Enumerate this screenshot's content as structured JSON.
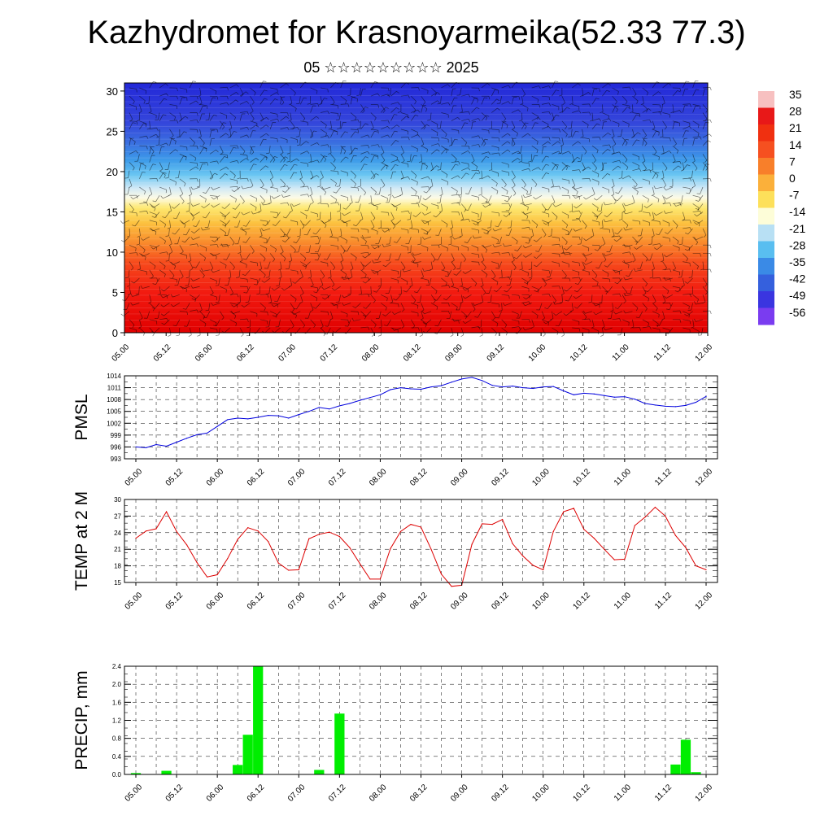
{
  "title": "Kazhydromet for Krasnoyarmeika(52.33 77.3)",
  "subtitle": "05 ☆☆☆☆☆☆☆☆☆ 2025",
  "time_labels": [
    "05.00",
    "05.12",
    "06.00",
    "06.12",
    "07.00",
    "07.12",
    "08.00",
    "08.12",
    "09.00",
    "09.12",
    "10.00",
    "10.12",
    "11.00",
    "11.12",
    "12.00"
  ],
  "chart_data": [
    {
      "type": "heatmap",
      "xlabels": [
        "05.00",
        "05.12",
        "06.00",
        "06.12",
        "07.00",
        "07.12",
        "08.00",
        "08.12",
        "09.00",
        "09.12",
        "10.00",
        "10.12",
        "11.00",
        "11.12",
        "12.00"
      ],
      "yticks": [
        0,
        5,
        10,
        15,
        20,
        25,
        30
      ],
      "ylim": [
        0,
        31
      ],
      "colorbar_labels": [
        "35",
        "28",
        "21",
        "14",
        "7",
        "0",
        "-7",
        "-14",
        "-21",
        "-28",
        "-35",
        "-42",
        "-49",
        "-56"
      ],
      "colorbar_colors": [
        "#f7c0c0",
        "#e81818",
        "#f03010",
        "#f65020",
        "#f87f2a",
        "#fbb03a",
        "#fde05a",
        "#fdfdd8",
        "#b8e0f4",
        "#59bef0",
        "#3a8ae6",
        "#3560dd",
        "#3a35e0",
        "#7a3cf0"
      ],
      "note_layers": "temperature shading with wind barbs, values by height and time"
    },
    {
      "type": "line",
      "ylabel": "PMSL",
      "ylim": [
        993,
        1014
      ],
      "yticks": [
        993,
        996,
        999,
        1002,
        1005,
        1008,
        1011,
        1014
      ],
      "color": "#0000dd",
      "x": [
        0,
        1,
        2,
        3,
        4,
        5,
        6,
        7,
        8,
        9,
        10,
        11,
        12,
        13,
        14,
        15,
        16,
        17,
        18,
        19,
        20,
        21,
        22,
        23,
        24,
        25,
        26,
        27,
        28,
        29,
        30,
        31,
        32,
        33,
        34,
        35,
        36,
        37,
        38,
        39,
        40,
        41,
        42,
        43,
        44,
        45,
        46,
        47,
        48,
        49,
        50,
        51,
        52,
        53,
        54,
        55,
        56
      ],
      "values": [
        996.0,
        995.8,
        996.6,
        996.2,
        997.2,
        998.2,
        999.1,
        999.5,
        1001.2,
        1002.9,
        1003.3,
        1003.1,
        1003.5,
        1004.0,
        1003.9,
        1003.3,
        1004.2,
        1005.0,
        1006.0,
        1005.6,
        1006.4,
        1007.0,
        1007.8,
        1008.5,
        1009.2,
        1010.5,
        1011.0,
        1010.7,
        1010.6,
        1011.2,
        1011.5,
        1012.4,
        1013.2,
        1013.6,
        1012.8,
        1011.6,
        1011.2,
        1011.4,
        1011.0,
        1010.8,
        1011.2,
        1011.3,
        1010.2,
        1009.2,
        1009.6,
        1009.4,
        1009.0,
        1008.6,
        1008.7,
        1008.1,
        1007.0,
        1006.6,
        1006.3,
        1006.2,
        1006.5,
        1007.3,
        1008.8
      ]
    },
    {
      "type": "line",
      "ylabel": "TEMP at 2 M",
      "ylim": [
        15,
        30
      ],
      "yticks": [
        15,
        18,
        21,
        24,
        27,
        30
      ],
      "color": "#dd0000",
      "x": [
        0,
        1,
        2,
        3,
        4,
        5,
        6,
        7,
        8,
        9,
        10,
        11,
        12,
        13,
        14,
        15,
        16,
        17,
        18,
        19,
        20,
        21,
        22,
        23,
        24,
        25,
        26,
        27,
        28,
        29,
        30,
        31,
        32,
        33,
        34,
        35,
        36,
        37,
        38,
        39,
        40,
        41,
        42,
        43,
        44,
        45,
        46,
        47,
        48,
        49,
        50,
        51,
        52,
        53,
        54,
        55,
        56
      ],
      "values": [
        23.0,
        24.3,
        24.7,
        27.8,
        24.2,
        21.8,
        18.6,
        16.0,
        16.4,
        19.3,
        22.8,
        24.9,
        24.3,
        22.4,
        18.5,
        17.2,
        17.3,
        22.9,
        23.7,
        24.1,
        23.3,
        21.3,
        18.4,
        15.6,
        15.6,
        21.1,
        24.2,
        25.5,
        25.0,
        21.0,
        16.5,
        14.3,
        14.5,
        21.9,
        25.6,
        25.5,
        26.4,
        22.0,
        19.8,
        18.1,
        17.3,
        24.2,
        27.8,
        28.4,
        24.6,
        23.0,
        21.0,
        19.1,
        19.2,
        25.3,
        26.8,
        28.6,
        27.0,
        23.5,
        21.3,
        18.0,
        17.3
      ]
    },
    {
      "type": "bar",
      "ylabel": "PRECIP, mm",
      "ylim": [
        0,
        2.4
      ],
      "yticks": [
        "0.0",
        "0.4",
        "0.8",
        "1.2",
        "1.6",
        "2.0",
        "2.4"
      ],
      "color": "#00ee00",
      "x": [
        0,
        1,
        2,
        3,
        4,
        5,
        6,
        7,
        8,
        9,
        10,
        11,
        12,
        13,
        14,
        15,
        16,
        17,
        18,
        19,
        20,
        21,
        22,
        23,
        24,
        25,
        26,
        27,
        28,
        29,
        30,
        31,
        32,
        33,
        34,
        35,
        36,
        37,
        38,
        39,
        40,
        41,
        42,
        43,
        44,
        45,
        46,
        47,
        48,
        49,
        50,
        51,
        52,
        53,
        54,
        55,
        56
      ],
      "values": [
        0.03,
        0,
        0,
        0.08,
        0,
        0,
        0,
        0,
        0,
        0,
        0.21,
        0.88,
        2.4,
        0,
        0,
        0,
        0,
        0,
        0.1,
        0,
        1.35,
        0,
        0,
        0,
        0,
        0,
        0,
        0,
        0,
        0,
        0,
        0,
        0,
        0,
        0,
        0,
        0,
        0,
        0,
        0,
        0,
        0,
        0,
        0,
        0,
        0,
        0,
        0,
        0,
        0,
        0,
        0,
        0,
        0.22,
        0.77,
        0.05,
        0
      ]
    }
  ]
}
